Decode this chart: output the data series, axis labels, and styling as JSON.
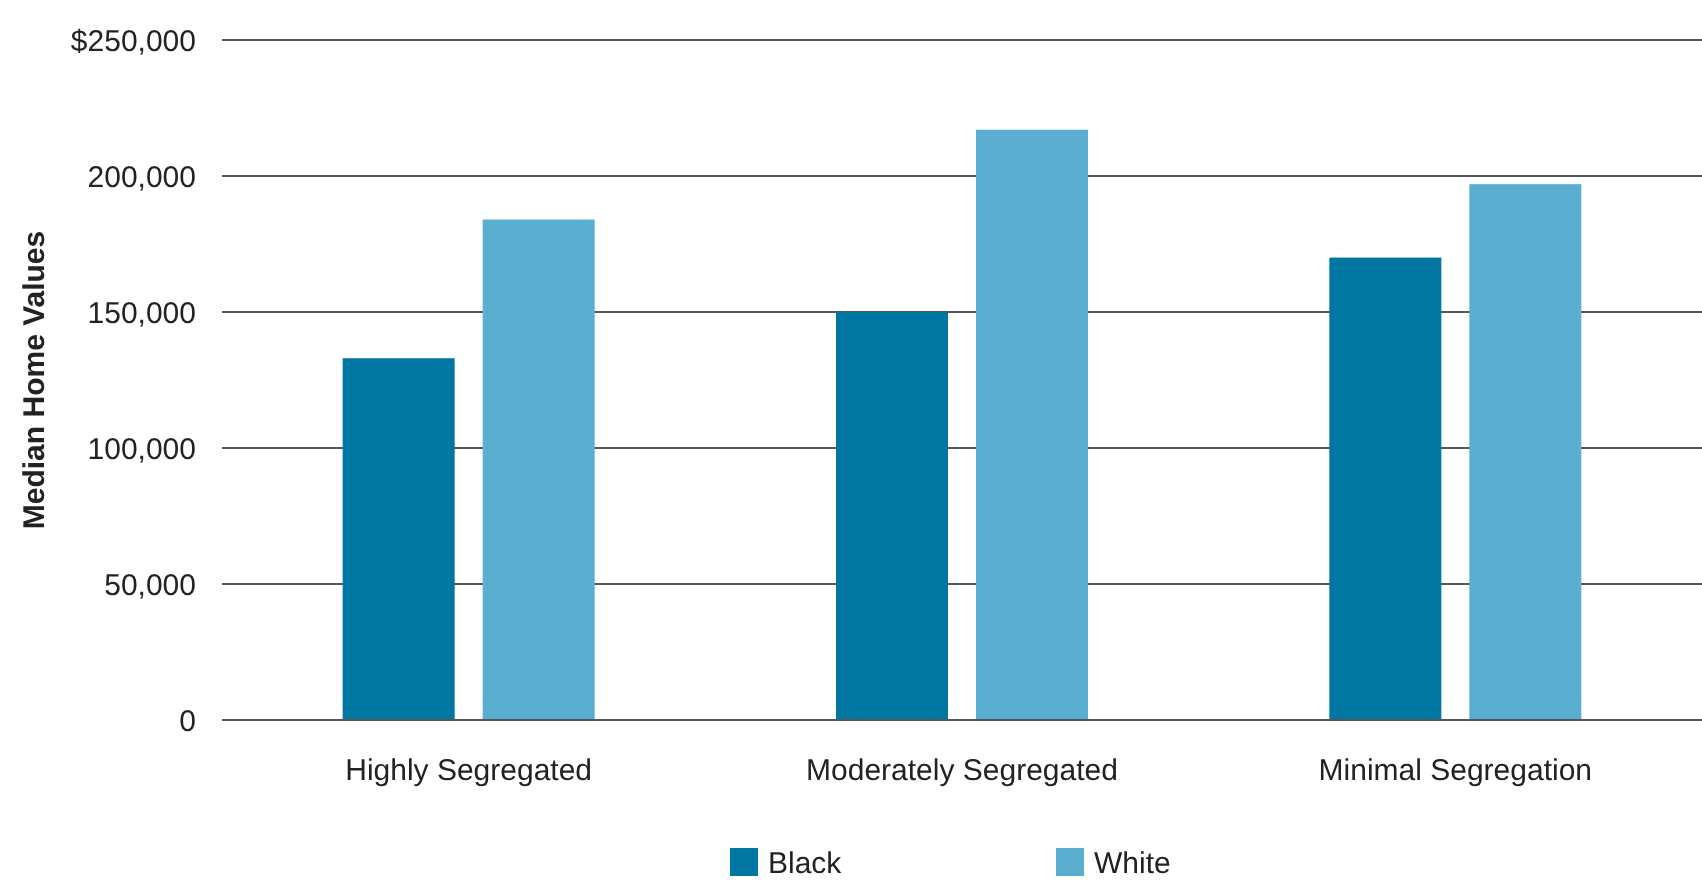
{
  "chart_data": {
    "type": "bar",
    "ylabel": "Median Home Values",
    "categories": [
      "Highly Segregated",
      "Moderately Segregated",
      "Minimal Segregation"
    ],
    "series": [
      {
        "name": "Black",
        "color": "#0077a2",
        "values": [
          133000,
          150000,
          170000
        ]
      },
      {
        "name": "White",
        "color": "#5aaed0",
        "values": [
          184000,
          217000,
          197000
        ]
      }
    ],
    "ylim": [
      0,
      250000
    ],
    "yticks": [
      0,
      {
        "value": 50000,
        "label": "50,000"
      },
      {
        "value": 100000,
        "label": "100,000"
      },
      {
        "value": 150000,
        "label": "150,000"
      },
      {
        "value": 200000,
        "label": "200,000"
      },
      {
        "value": 250000,
        "label": "$250,000"
      }
    ],
    "grid": "y",
    "legend": "bottom"
  }
}
